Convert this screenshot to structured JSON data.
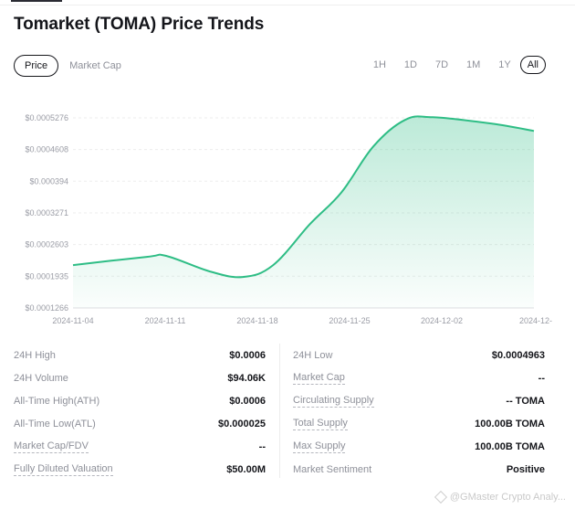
{
  "header": {
    "title": "Tomarket (TOMA) Price Trends"
  },
  "metric_tabs": [
    {
      "label": "Price",
      "active": true
    },
    {
      "label": "Market Cap",
      "active": false
    }
  ],
  "range_tabs": [
    {
      "label": "1H",
      "active": false
    },
    {
      "label": "1D",
      "active": false
    },
    {
      "label": "7D",
      "active": false
    },
    {
      "label": "1M",
      "active": false
    },
    {
      "label": "1Y",
      "active": false
    },
    {
      "label": "All",
      "active": true
    }
  ],
  "chart_data": {
    "type": "area",
    "title": "",
    "xlabel": "",
    "ylabel": "",
    "y_ticks": [
      "$0.0005276",
      "$0.0004608",
      "$0.000394",
      "$0.0003271",
      "$0.0002603",
      "$0.0001935",
      "$0.0001266"
    ],
    "y_tick_values": [
      0.0005276,
      0.0004608,
      0.000394,
      0.0003271,
      0.0002603,
      0.0001935,
      0.0001266
    ],
    "x_ticks": [
      "2024-11-04",
      "2024-11-11",
      "2024-11-18",
      "2024-11-25",
      "2024-12-02",
      "2024-12-"
    ],
    "ylim": [
      0.0001266,
      0.0005276
    ],
    "xlim_days": [
      0,
      35
    ],
    "x_tick_days": [
      0,
      7,
      14,
      21,
      28,
      35
    ],
    "grid": true,
    "line_color": "#2ebd85",
    "series": [
      {
        "name": "Price",
        "x_days": [
          0,
          5.6,
          7.1,
          10.4,
          12.9,
          15.2,
          18.0,
          20.4,
          22.8,
          25.2,
          27.3,
          31.8,
          35
        ],
        "values": [
          0.0002171,
          0.0002344,
          0.0002363,
          0.0002036,
          0.000192,
          0.0002171,
          0.0003037,
          0.0003711,
          0.0004673,
          0.0005231,
          0.0005289,
          0.0005155,
          0.0005
        ]
      }
    ]
  },
  "stats": {
    "left": [
      {
        "label": "24H High",
        "value": "$0.0006",
        "dashed": false
      },
      {
        "label": "24H Volume",
        "value": "$94.06K",
        "dashed": false
      },
      {
        "label": "All-Time High(ATH)",
        "value": "$0.0006",
        "dashed": false
      },
      {
        "label": "All-Time Low(ATL)",
        "value": "$0.000025",
        "dashed": false
      },
      {
        "label": "Market Cap/FDV",
        "value": "--",
        "dashed": true
      },
      {
        "label": "Fully Diluted Valuation",
        "value": "$50.00M",
        "dashed": true
      }
    ],
    "right": [
      {
        "label": "24H Low",
        "value": "$0.0004963",
        "dashed": false
      },
      {
        "label": "Market Cap",
        "value": "--",
        "dashed": true
      },
      {
        "label": "Circulating Supply",
        "value": "-- TOMA",
        "dashed": true
      },
      {
        "label": "Total Supply",
        "value": "100.00B TOMA",
        "dashed": true
      },
      {
        "label": "Max Supply",
        "value": "100.00B TOMA",
        "dashed": true
      },
      {
        "label": "Market Sentiment",
        "value": "Positive",
        "dashed": false
      }
    ]
  },
  "watermark": {
    "text": "@GMaster Crypto Analy...",
    "icon": "diamond-icon"
  }
}
